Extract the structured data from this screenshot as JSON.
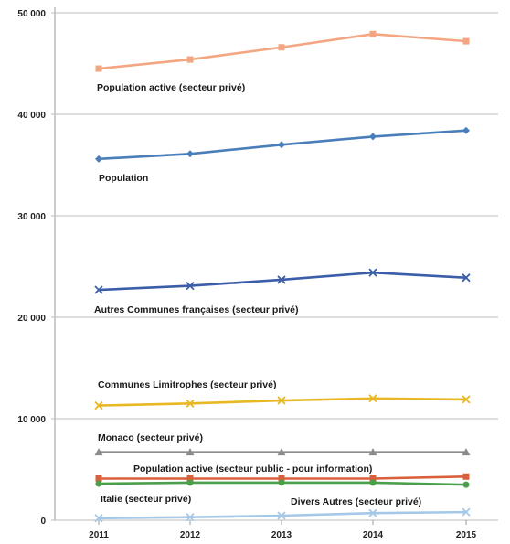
{
  "chart_data": {
    "type": "line",
    "title": "",
    "xlabel": "",
    "ylabel": "",
    "categories": [
      "2011",
      "2012",
      "2013",
      "2014",
      "2015"
    ],
    "y_tick_labels": [
      "0",
      "10 000",
      "20 000",
      "30 000",
      "40 000",
      "50 000"
    ],
    "ylim": [
      0,
      50000
    ],
    "grid": "horizontal",
    "legend": "none (series labels placed next to lines)",
    "series": [
      {
        "name": "Population active (secteur privé)",
        "color": "#f4a582",
        "marker": "square",
        "values": [
          44500,
          45400,
          46600,
          47900,
          47200
        ]
      },
      {
        "name": "Population",
        "color": "#4a7ebb",
        "marker": "diamond",
        "values": [
          35600,
          36100,
          37000,
          37800,
          38400
        ]
      },
      {
        "name": "Autres Communes françaises (secteur privé)",
        "color": "#3c5ea8",
        "marker": "x",
        "values": [
          22700,
          23100,
          23700,
          24400,
          23900
        ]
      },
      {
        "name": "Communes Limitrophes (secteur privé)",
        "color": "#e8b822",
        "marker": "x",
        "values": [
          11300,
          11500,
          11800,
          12000,
          11900
        ]
      },
      {
        "name": "Monaco (secteur privé)",
        "color": "#8c8c8c",
        "marker": "triangle",
        "values": [
          6700,
          6700,
          6700,
          6700,
          6700
        ]
      },
      {
        "name": "Population active (secteur public - pour information)",
        "color": "#d9603b",
        "marker": "square",
        "values": [
          4100,
          4100,
          4100,
          4100,
          4300
        ]
      },
      {
        "name": "Italie (secteur privé)",
        "color": "#4aa04a",
        "marker": "circle",
        "values": [
          3600,
          3700,
          3700,
          3700,
          3500
        ]
      },
      {
        "name": "Divers Autres (secteur privé)",
        "color": "#a6c8e8",
        "marker": "x",
        "values": [
          200,
          300,
          450,
          700,
          800
        ]
      }
    ]
  }
}
